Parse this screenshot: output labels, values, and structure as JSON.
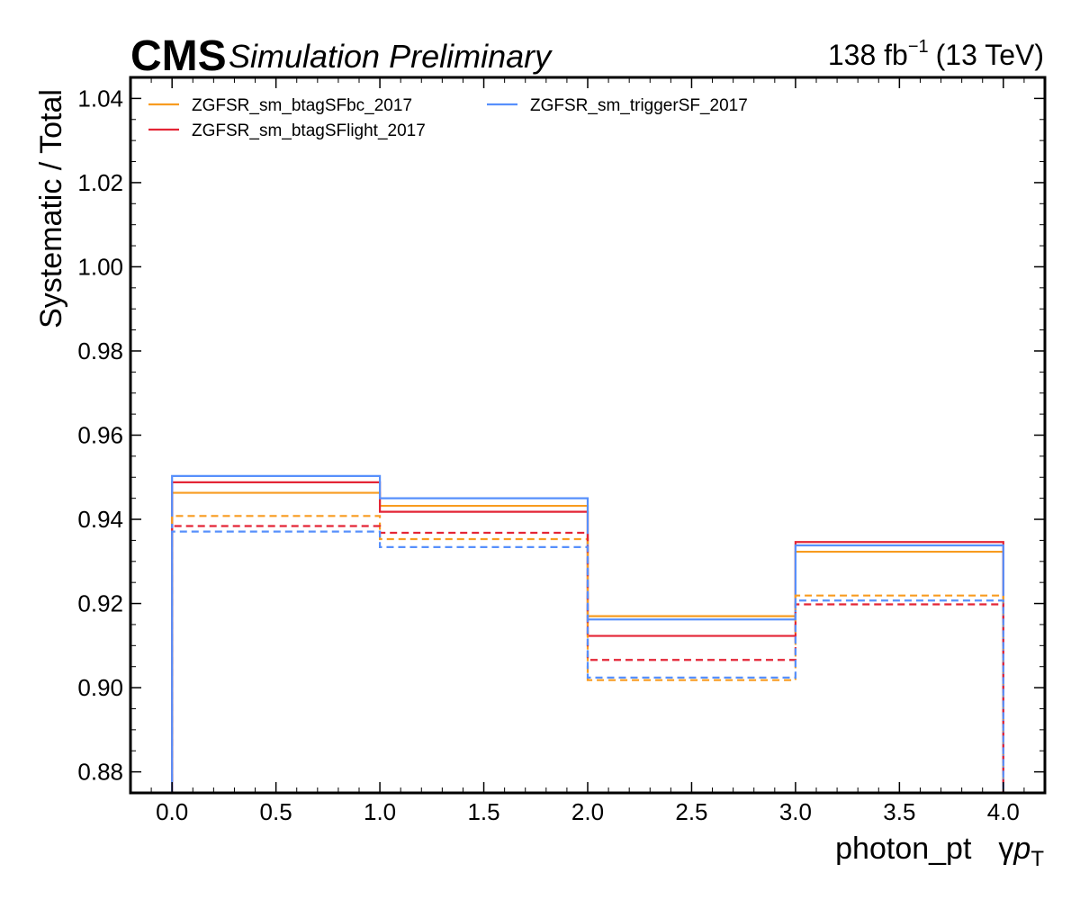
{
  "header": {
    "experiment": "CMS",
    "status": "Simulation Preliminary",
    "lumi_value": "138 fb",
    "lumi_exponent": "−1",
    "energy": "(13 TeV)"
  },
  "chart_data": {
    "type": "line",
    "xlabel": "photon_pt",
    "xlabel_symbol_prefix": "γ",
    "xlabel_symbol_main": "p",
    "xlabel_symbol_sub": "T",
    "ylabel": "Systematic / Total",
    "xlim": [
      -0.2,
      4.2
    ],
    "ylim": [
      0.875,
      1.045
    ],
    "grid": false,
    "legend_position": "top-left",
    "x_ticks": [
      0.0,
      0.5,
      1.0,
      1.5,
      2.0,
      2.5,
      3.0,
      3.5,
      4.0
    ],
    "x_tick_labels": [
      "0.0",
      "0.5",
      "1.0",
      "1.5",
      "2.0",
      "2.5",
      "3.0",
      "3.5",
      "4.0"
    ],
    "y_ticks": [
      0.88,
      0.9,
      0.92,
      0.94,
      0.96,
      0.98,
      1.0,
      1.02,
      1.04
    ],
    "y_tick_labels": [
      "0.88",
      "0.90",
      "0.92",
      "0.94",
      "0.96",
      "0.98",
      "1.00",
      "1.02",
      "1.04"
    ],
    "bin_edges": [
      0,
      1,
      2,
      3,
      4
    ],
    "series": [
      {
        "name": "ZGFSR_sm_btagSFbc_2017",
        "color": "#f89c20",
        "style": "solid",
        "values": [
          0.9463,
          0.9432,
          0.917,
          0.9323
        ]
      },
      {
        "name": "ZGFSR_sm_btagSFlight_2017",
        "color": "#e42536",
        "style": "solid",
        "values": [
          0.9488,
          0.9418,
          0.9123,
          0.9346
        ]
      },
      {
        "name": "ZGFSR_sm_triggerSF_2017",
        "color": "#5790fc",
        "style": "solid",
        "values": [
          0.9503,
          0.945,
          0.9162,
          0.9338
        ]
      },
      {
        "name": "",
        "color": "#f89c20",
        "style": "dashed",
        "values": [
          0.9408,
          0.9353,
          0.9018,
          0.9219
        ]
      },
      {
        "name": "",
        "color": "#e42536",
        "style": "dashed",
        "values": [
          0.9384,
          0.9368,
          0.9066,
          0.9198
        ]
      },
      {
        "name": "",
        "color": "#5790fc",
        "style": "dashed",
        "values": [
          0.9371,
          0.9334,
          0.9024,
          0.9207
        ]
      }
    ]
  }
}
